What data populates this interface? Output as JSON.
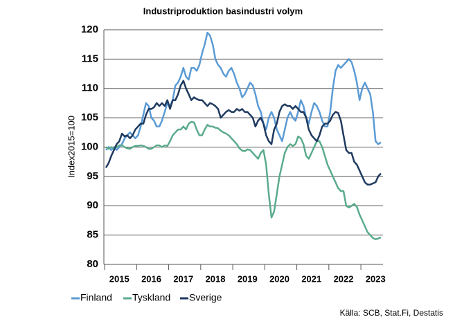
{
  "chart_data": {
    "type": "line",
    "title": "Industriproduktion basindustri volym",
    "y_label": "Index2015=100",
    "source": "Källa: SCB, Stat.Fi, Destatis",
    "legend": "bottom left",
    "grid": true,
    "ylim": [
      80,
      120
    ],
    "yticks": [
      80,
      85,
      90,
      95,
      100,
      105,
      110,
      115,
      120
    ],
    "categories": [
      null,
      null,
      null,
      null,
      null,
      "2015",
      null,
      null,
      null,
      null,
      null,
      null,
      null,
      null,
      null,
      null,
      null,
      "2016",
      null,
      null,
      null,
      null,
      null,
      null,
      null,
      null,
      null,
      null,
      null,
      "2017",
      null,
      null,
      null,
      null,
      null,
      null,
      null,
      null,
      null,
      null,
      null,
      "2018",
      null,
      null,
      null,
      null,
      null,
      null,
      null,
      null,
      null,
      null,
      null,
      "2019",
      null,
      null,
      null,
      null,
      null,
      null,
      null,
      null,
      null,
      null,
      null,
      "2020",
      null,
      null,
      null,
      null,
      null,
      null,
      null,
      null,
      null,
      null,
      null,
      "2021",
      null,
      null,
      null,
      null,
      null,
      null,
      null,
      null,
      null,
      null,
      null,
      "2022",
      null,
      null,
      null,
      null,
      null,
      null,
      null,
      null,
      null,
      null,
      null,
      "2023",
      null,
      null
    ],
    "series": [
      {
        "name": "Finland",
        "color": "#5b9bd5",
        "values": [
          99.5,
          100,
          99.5,
          100,
          99.5,
          100,
          100.5,
          101.5,
          102,
          102.5,
          102,
          101.5,
          102,
          103.5,
          105.5,
          107.5,
          107,
          105,
          104.5,
          103.5,
          103.5,
          104.5,
          106,
          107.5,
          107,
          108,
          110.5,
          111,
          112,
          113.5,
          112,
          111.5,
          113.5,
          113.5,
          113,
          114,
          116,
          117.5,
          119.5,
          119,
          117.5,
          115,
          114,
          113.5,
          112.5,
          112,
          113,
          113.5,
          112.5,
          111,
          110,
          108.5,
          109,
          110,
          111,
          110.5,
          109,
          107,
          106,
          104,
          103,
          105,
          106,
          105,
          103,
          102,
          101,
          103,
          105,
          106,
          105,
          104.5,
          106,
          108,
          107,
          105,
          104,
          106,
          107.5,
          107,
          106,
          104.5,
          103.5,
          103.5,
          106,
          110,
          113,
          114,
          113.5,
          114,
          114.5,
          115,
          114.5,
          113,
          111,
          108,
          110,
          111,
          110,
          109,
          106,
          101,
          100.5,
          100.8
        ]
      },
      {
        "name": "Tyskland",
        "color": "#5aab8c",
        "values": [
          100,
          99.7,
          100,
          99.8,
          100,
          100.3,
          100.3,
          100,
          99.8,
          99.7,
          100,
          100.2,
          100.2,
          100.3,
          100.2,
          100,
          99.7,
          99.7,
          100,
          100.3,
          100.3,
          100,
          100.3,
          100.2,
          101,
          102,
          102.5,
          103,
          103,
          103.5,
          103,
          104,
          104.3,
          104.2,
          103,
          102,
          102,
          103,
          103.8,
          103.5,
          103.5,
          103.3,
          103.2,
          102.8,
          102.5,
          102.3,
          102,
          101.5,
          101,
          100.5,
          99.8,
          99.4,
          99.3,
          99.6,
          99.5,
          99,
          98.5,
          98,
          99,
          99.5,
          97,
          92,
          88,
          89,
          92,
          95,
          97,
          99,
          100,
          100.5,
          100.2,
          100.5,
          101.8,
          101.5,
          100.5,
          98.5,
          98,
          99,
          100,
          101,
          101,
          100,
          98.5,
          97,
          96,
          95,
          94,
          93,
          92.5,
          92.5,
          90,
          89.7,
          90,
          90.3,
          89.8,
          88.5,
          87.5,
          86.5,
          85.5,
          85,
          84.5,
          84.3,
          84.4,
          84.6
        ]
      },
      {
        "name": "Sverige",
        "color": "#1f3a5f",
        "values": [
          96.5,
          97.3,
          98.5,
          99.5,
          100.5,
          101,
          102.3,
          101.8,
          102,
          101.5,
          102,
          103,
          103.5,
          104,
          104,
          105.5,
          106.5,
          106.5,
          106.8,
          107.5,
          107,
          107.5,
          107,
          108,
          106.5,
          108,
          108,
          109,
          110.5,
          111.3,
          110,
          109,
          108,
          108.5,
          108.2,
          108,
          108,
          107.5,
          107,
          107.5,
          107.3,
          107,
          106.5,
          105,
          105.5,
          106,
          106.3,
          106,
          106,
          106.5,
          106.2,
          106.5,
          106,
          106,
          105.5,
          105,
          103.5,
          104.5,
          105,
          104,
          102,
          101,
          100.5,
          103,
          104,
          106,
          107,
          107.3,
          107,
          107,
          106.5,
          107,
          106.5,
          106,
          106,
          105,
          103,
          102,
          101.5,
          101,
          102,
          103.5,
          104,
          104,
          104.5,
          105.5,
          106,
          105.8,
          104.5,
          102,
          99.5,
          99,
          99,
          97.5,
          97,
          96,
          95,
          94,
          93.6,
          93.6,
          93.8,
          94,
          95,
          95.5
        ]
      }
    ]
  }
}
